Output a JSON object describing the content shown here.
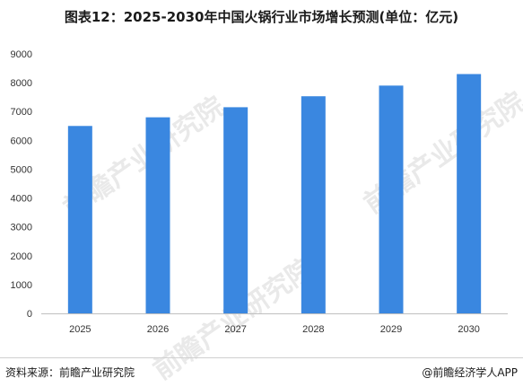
{
  "title": "图表12：2025-2030年中国火锅行业市场增长预测(单位：亿元)",
  "watermark_text": "前瞻产业研究院",
  "footer": {
    "source": "资料来源：前瞻产业研究院",
    "credit": "@前瞻经济学人APP"
  },
  "colors": {
    "bar": "#3a87e0",
    "axis": "#bfbfbf"
  },
  "chart_data": {
    "type": "bar",
    "categories": [
      "2025",
      "2026",
      "2027",
      "2028",
      "2029",
      "2030"
    ],
    "values": [
      6500,
      6800,
      7150,
      7530,
      7900,
      8300
    ],
    "title": "图表12：2025-2030年中国火锅行业市场增长预测(单位：亿元)",
    "xlabel": "",
    "ylabel": "",
    "ylim": [
      0,
      9000
    ],
    "yticks": [
      0,
      1000,
      2000,
      3000,
      4000,
      5000,
      6000,
      7000,
      8000,
      9000
    ],
    "grid": false,
    "legend": "none"
  }
}
